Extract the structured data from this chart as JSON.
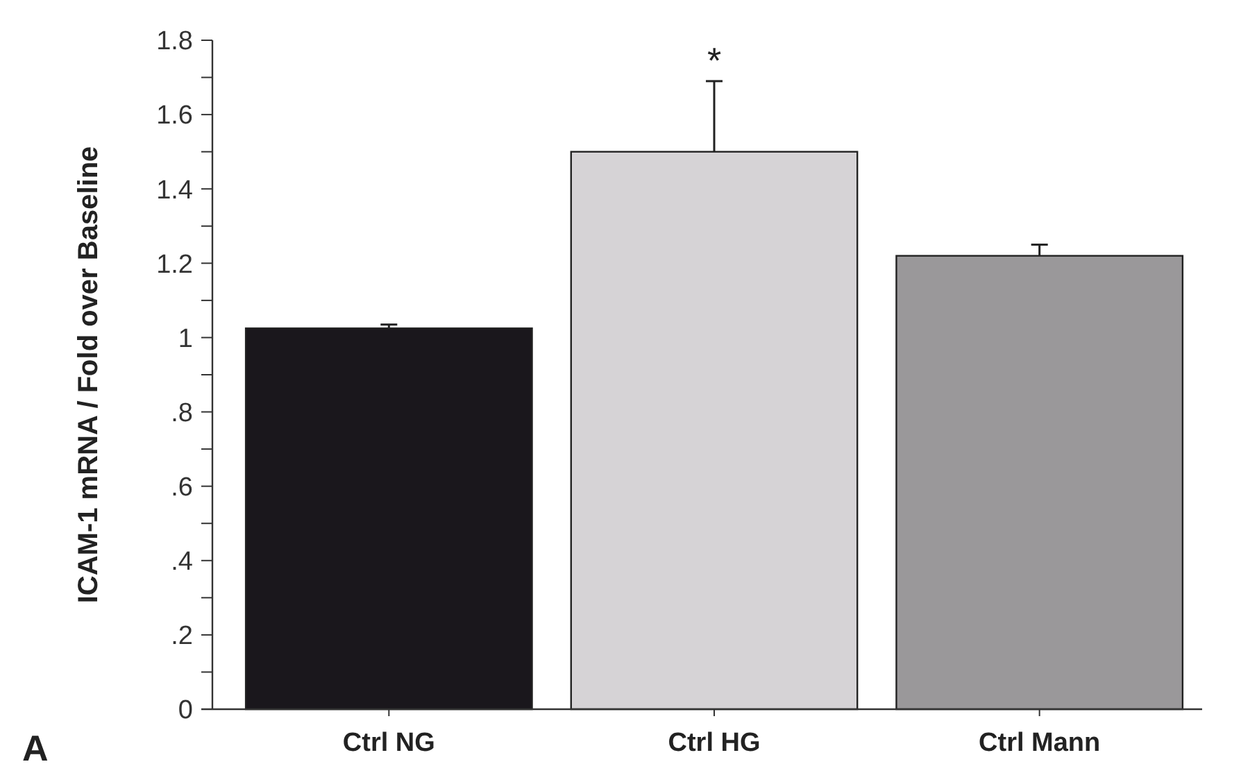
{
  "chart_data": {
    "type": "bar",
    "ylabel": "ICAM-1 mRNA / Fold over Baseline",
    "categories": [
      "Ctrl NG",
      "Ctrl HG",
      "Ctrl Mann"
    ],
    "values": [
      1.025,
      1.5,
      1.22
    ],
    "colors": [
      "#1a171c",
      "#d6d3d6",
      "#9a989a"
    ],
    "errors": [
      [
        1.025,
        1.035
      ],
      [
        1.5,
        1.69
      ],
      [
        1.22,
        1.25
      ]
    ],
    "ylim": [
      0,
      1.8
    ],
    "yticks": [
      0,
      {
        "value": 0.1,
        "label": null
      },
      {
        "value": 0.2,
        "label": ".2"
      },
      {
        "value": 0.3,
        "label": null
      },
      {
        "value": 0.4,
        "label": ".4"
      },
      {
        "value": 0.5,
        "label": null
      },
      {
        "value": 0.6,
        "label": ".6"
      },
      {
        "value": 0.7,
        "label": null
      },
      {
        "value": 0.8,
        "label": ".8"
      },
      {
        "value": 0.9,
        "label": null
      },
      1,
      {
        "value": 1.1,
        "label": null
      },
      1.2,
      {
        "value": 1.3,
        "label": null
      },
      1.4,
      {
        "value": 1.5,
        "label": null
      },
      1.6,
      {
        "value": 1.7,
        "label": null
      },
      1.8
    ],
    "annotations": [
      {
        "text": "*",
        "x": "Ctrl HG",
        "y": 1.69
      },
      "A"
    ]
  }
}
